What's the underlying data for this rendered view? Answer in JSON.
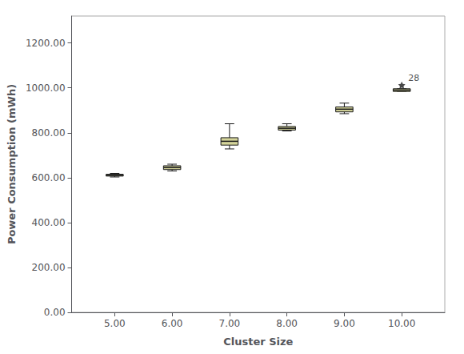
{
  "chart_data": {
    "type": "box",
    "x": [
      5,
      6,
      7,
      8,
      9,
      10
    ],
    "whisker_low": [
      603,
      630,
      728,
      808,
      885,
      984
    ],
    "q1": [
      607,
      636,
      745,
      812,
      893,
      984
    ],
    "median": [
      611,
      645,
      762,
      820,
      905,
      990
    ],
    "q3": [
      615,
      653,
      778,
      828,
      915,
      996
    ],
    "whisker_high": [
      619,
      660,
      840,
      840,
      932,
      996
    ],
    "outliers": [
      [],
      [],
      [],
      [],
      [],
      [
        1012
      ]
    ],
    "annotations": [
      {
        "x": 10,
        "y": 1012,
        "text": "28"
      }
    ],
    "color": "#d4d49a",
    "marker": "star",
    "xlabel": "Cluster Size",
    "ylabel": "Power Consumption (mWh)",
    "xlim": [
      4.25,
      10.75
    ],
    "xticks": [
      {
        "value": 5,
        "label": "5.00"
      },
      {
        "value": 6,
        "label": "6.00"
      },
      {
        "value": 7,
        "label": "7.00"
      },
      {
        "value": 8,
        "label": "8.00"
      },
      {
        "value": 9,
        "label": "9.00"
      },
      {
        "value": 10,
        "label": "10.00"
      }
    ],
    "ylim": [
      0,
      1320
    ],
    "yticks": [
      {
        "value": 0,
        "label": "0.00"
      },
      {
        "value": 200,
        "label": "200.00"
      },
      {
        "value": 400,
        "label": "400.00"
      },
      {
        "value": 600,
        "label": "600.00"
      },
      {
        "value": 800,
        "label": "800.00"
      },
      {
        "value": 1000,
        "label": "1000.00"
      },
      {
        "value": 1200,
        "label": "1200.00"
      }
    ],
    "grid": false
  }
}
